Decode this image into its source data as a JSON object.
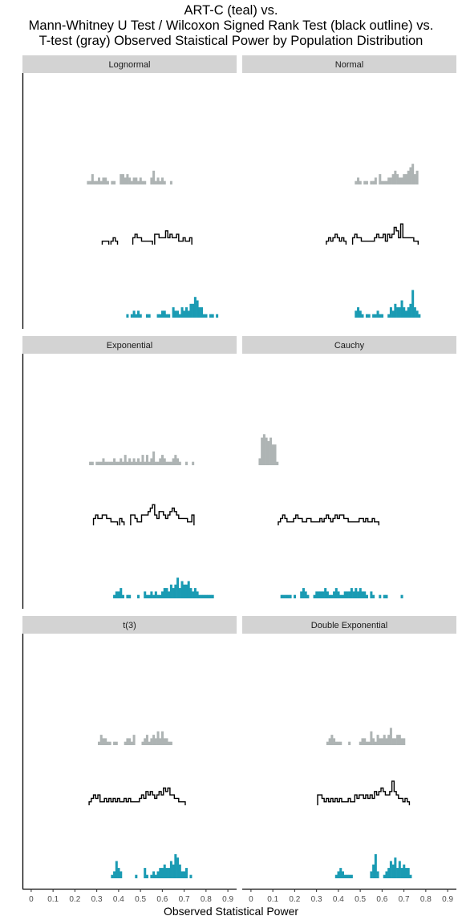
{
  "title_lines": [
    "ART-C (teal) vs.",
    "Mann-Whitney U Test / Wilcoxon Signed Rank Test (black outline) vs.",
    "T-test (gray) Observed Staistical Power by Population Distribution"
  ],
  "colors": {
    "artc": "#1a9bb3",
    "ttest": "#aeb4b4",
    "mwu": "#000000",
    "strip": "#d3d3d3"
  },
  "chart_data": {
    "type": "histogram",
    "title": "ART-C (teal) vs. Mann-Whitney U Test / Wilcoxon Signed Rank Test (black outline) vs. T-test (gray) Observed Staistical Power by Population Distribution",
    "xlabel": "Observed Statistical Power",
    "ylabel": "",
    "xlim": [
      -0.04,
      0.94
    ],
    "xticks": [
      "0",
      "0.1",
      "0.2",
      "0.3",
      "0.4",
      "0.5",
      "0.6",
      "0.7",
      "0.8",
      "0.9"
    ],
    "bin_width": 0.01,
    "grid": false,
    "series_styles": {
      "artc": "teal filled",
      "mwu": "black outline",
      "ttest": "gray filled"
    },
    "panels": [
      {
        "label": "Lognormal",
        "ttest": {
          "0.26": 1,
          "0.27": 1,
          "0.28": 3,
          "0.29": 1,
          "0.3": 1,
          "0.31": 2,
          "0.32": 1,
          "0.33": 2,
          "0.34": 2,
          "0.35": 1,
          "0.37": 1,
          "0.38": 1,
          "0.41": 3,
          "0.42": 3,
          "0.43": 2,
          "0.44": 3,
          "0.45": 2,
          "0.46": 1,
          "0.47": 2,
          "0.48": 2,
          "0.49": 1,
          "0.5": 2,
          "0.51": 1,
          "0.52": 1,
          "0.55": 2,
          "0.56": 4,
          "0.57": 1,
          "0.58": 2,
          "0.59": 1,
          "0.6": 2,
          "0.61": 1,
          "0.64": 1
        },
        "mwu": {
          "0.33": 1,
          "0.34": 1,
          "0.35": 1,
          "0.37": 1,
          "0.38": 2,
          "0.39": 1,
          "0.47": 2,
          "0.48": 3,
          "0.49": 2,
          "0.5": 2,
          "0.51": 1,
          "0.52": 1,
          "0.53": 1,
          "0.54": 1,
          "0.55": 1,
          "0.57": 3,
          "0.58": 3,
          "0.59": 2,
          "0.6": 2,
          "0.61": 2,
          "0.62": 4,
          "0.63": 2,
          "0.64": 3,
          "0.65": 2,
          "0.66": 2,
          "0.67": 3,
          "0.68": 1,
          "0.69": 1,
          "0.7": 2,
          "0.71": 1,
          "0.72": 1,
          "0.73": 2
        },
        "artc": {
          "0.44": 1,
          "0.46": 1,
          "0.47": 2,
          "0.48": 1,
          "0.49": 2,
          "0.5": 1,
          "0.53": 1,
          "0.54": 1,
          "0.58": 1,
          "0.59": 1,
          "0.6": 2,
          "0.61": 2,
          "0.62": 1,
          "0.63": 1,
          "0.65": 3,
          "0.66": 2,
          "0.67": 2,
          "0.68": 1,
          "0.69": 3,
          "0.7": 2,
          "0.71": 3,
          "0.72": 2,
          "0.73": 4,
          "0.74": 4,
          "0.75": 6,
          "0.76": 5,
          "0.77": 3,
          "0.78": 3,
          "0.79": 1,
          "0.8": 1,
          "0.82": 1,
          "0.83": 1,
          "0.85": 1
        }
      },
      {
        "label": "Normal",
        "ttest": {
          "0.48": 1,
          "0.49": 2,
          "0.5": 1,
          "0.52": 1,
          "0.53": 1,
          "0.55": 1,
          "0.56": 1,
          "0.57": 2,
          "0.59": 3,
          "0.6": 1,
          "0.61": 1,
          "0.62": 1,
          "0.63": 2,
          "0.64": 2,
          "0.65": 3,
          "0.66": 4,
          "0.67": 3,
          "0.68": 2,
          "0.69": 2,
          "0.7": 3,
          "0.71": 3,
          "0.72": 4,
          "0.73": 5,
          "0.74": 6,
          "0.75": 3,
          "0.76": 4
        },
        "mwu": {
          "0.35": 1,
          "0.36": 2,
          "0.37": 1,
          "0.38": 2,
          "0.39": 3,
          "0.4": 2,
          "0.41": 1,
          "0.42": 2,
          "0.43": 1,
          "0.47": 2,
          "0.48": 3,
          "0.49": 2,
          "0.5": 2,
          "0.51": 1,
          "0.52": 1,
          "0.53": 1,
          "0.54": 1,
          "0.55": 1,
          "0.56": 1,
          "0.57": 2,
          "0.58": 3,
          "0.59": 2,
          "0.6": 2,
          "0.61": 3,
          "0.62": 1,
          "0.63": 3,
          "0.64": 2,
          "0.65": 3,
          "0.66": 5,
          "0.67": 4,
          "0.68": 2,
          "0.69": 6,
          "0.7": 2,
          "0.71": 2,
          "0.72": 2,
          "0.73": 2,
          "0.74": 2,
          "0.75": 1,
          "0.76": 1
        },
        "artc": {
          "0.48": 2,
          "0.49": 3,
          "0.5": 2,
          "0.51": 1,
          "0.53": 1,
          "0.54": 1,
          "0.56": 1,
          "0.57": 1,
          "0.58": 2,
          "0.59": 1,
          "0.6": 1,
          "0.63": 1,
          "0.64": 3,
          "0.65": 2,
          "0.66": 4,
          "0.67": 3,
          "0.68": 3,
          "0.69": 5,
          "0.7": 3,
          "0.71": 2,
          "0.72": 3,
          "0.73": 4,
          "0.74": 8,
          "0.75": 3,
          "0.76": 2,
          "0.77": 1
        }
      },
      {
        "label": "Exponential",
        "ttest": {
          "0.27": 1,
          "0.28": 1,
          "0.3": 1,
          "0.31": 1,
          "0.32": 1,
          "0.33": 2,
          "0.34": 1,
          "0.35": 1,
          "0.36": 1,
          "0.37": 1,
          "0.38": 2,
          "0.39": 1,
          "0.4": 1,
          "0.41": 2,
          "0.42": 1,
          "0.43": 3,
          "0.44": 1,
          "0.45": 2,
          "0.46": 1,
          "0.47": 2,
          "0.48": 1,
          "0.49": 2,
          "0.5": 1,
          "0.51": 3,
          "0.52": 1,
          "0.53": 3,
          "0.54": 1,
          "0.55": 2,
          "0.56": 4,
          "0.57": 1,
          "0.58": 1,
          "0.59": 2,
          "0.6": 3,
          "0.61": 2,
          "0.62": 1,
          "0.63": 1,
          "0.64": 1,
          "0.65": 2,
          "0.66": 3,
          "0.67": 2,
          "0.68": 1,
          "0.71": 1,
          "0.74": 1
        },
        "mwu": {
          "0.29": 2,
          "0.3": 3,
          "0.31": 2,
          "0.32": 2,
          "0.33": 3,
          "0.34": 3,
          "0.35": 2,
          "0.36": 2,
          "0.37": 1,
          "0.38": 1,
          "0.39": 1,
          "0.41": 2,
          "0.42": 1,
          "0.46": 3,
          "0.47": 3,
          "0.48": 2,
          "0.49": 1,
          "0.5": 1,
          "0.51": 3,
          "0.52": 3,
          "0.53": 3,
          "0.54": 4,
          "0.55": 5,
          "0.56": 6,
          "0.57": 3,
          "0.58": 2,
          "0.59": 4,
          "0.6": 4,
          "0.61": 3,
          "0.62": 2,
          "0.63": 3,
          "0.64": 4,
          "0.65": 5,
          "0.66": 4,
          "0.67": 3,
          "0.68": 2,
          "0.69": 2,
          "0.7": 2,
          "0.71": 2,
          "0.72": 1,
          "0.73": 1,
          "0.74": 3
        },
        "artc": {
          "0.38": 1,
          "0.39": 2,
          "0.4": 2,
          "0.41": 3,
          "0.42": 1,
          "0.44": 1,
          "0.45": 1,
          "0.49": 1,
          "0.52": 2,
          "0.53": 1,
          "0.54": 1,
          "0.55": 2,
          "0.56": 1,
          "0.57": 2,
          "0.58": 1,
          "0.59": 1,
          "0.6": 2,
          "0.61": 3,
          "0.62": 3,
          "0.63": 2,
          "0.64": 4,
          "0.65": 3,
          "0.66": 4,
          "0.67": 6,
          "0.68": 3,
          "0.69": 5,
          "0.7": 4,
          "0.71": 4,
          "0.72": 5,
          "0.73": 3,
          "0.74": 2,
          "0.75": 3,
          "0.76": 2,
          "0.77": 1,
          "0.78": 1,
          "0.79": 1,
          "0.8": 1,
          "0.81": 1,
          "0.82": 1,
          "0.83": 1
        }
      },
      {
        "label": "Cauchy",
        "ttest": {
          "0.04": 2,
          "0.05": 8,
          "0.06": 9,
          "0.07": 8,
          "0.08": 7,
          "0.09": 8,
          "0.1": 6,
          "0.11": 6,
          "0.12": 1
        },
        "mwu": {
          "0.13": 1,
          "0.14": 2,
          "0.15": 3,
          "0.16": 2,
          "0.17": 1,
          "0.18": 1,
          "0.19": 1,
          "0.2": 2,
          "0.21": 3,
          "0.22": 2,
          "0.23": 2,
          "0.24": 1,
          "0.25": 1,
          "0.26": 2,
          "0.27": 2,
          "0.28": 1,
          "0.29": 1,
          "0.3": 1,
          "0.31": 1,
          "0.32": 2,
          "0.33": 1,
          "0.34": 2,
          "0.35": 3,
          "0.36": 2,
          "0.37": 1,
          "0.38": 2,
          "0.39": 3,
          "0.4": 2,
          "0.41": 3,
          "0.42": 3,
          "0.43": 2,
          "0.44": 2,
          "0.45": 1,
          "0.46": 1,
          "0.47": 1,
          "0.48": 1,
          "0.49": 1,
          "0.5": 2,
          "0.51": 2,
          "0.52": 1,
          "0.53": 2,
          "0.54": 1,
          "0.55": 1,
          "0.56": 2,
          "0.57": 1,
          "0.58": 1
        },
        "artc": {
          "0.14": 1,
          "0.15": 1,
          "0.16": 1,
          "0.17": 1,
          "0.18": 1,
          "0.2": 1,
          "0.23": 2,
          "0.24": 3,
          "0.25": 2,
          "0.26": 1,
          "0.29": 1,
          "0.3": 2,
          "0.31": 2,
          "0.32": 2,
          "0.33": 2,
          "0.34": 3,
          "0.35": 2,
          "0.36": 1,
          "0.37": 1,
          "0.38": 2,
          "0.39": 3,
          "0.4": 2,
          "0.41": 1,
          "0.42": 1,
          "0.43": 2,
          "0.44": 2,
          "0.45": 2,
          "0.46": 3,
          "0.47": 2,
          "0.48": 3,
          "0.49": 2,
          "0.5": 3,
          "0.51": 2,
          "0.52": 2,
          "0.53": 1,
          "0.55": 2,
          "0.56": 1,
          "0.59": 1,
          "0.61": 1,
          "0.62": 1,
          "0.69": 1
        }
      },
      {
        "label": "t(3)",
        "ttest": {
          "0.31": 1,
          "0.32": 3,
          "0.33": 2,
          "0.34": 2,
          "0.35": 1,
          "0.36": 1,
          "0.38": 1,
          "0.39": 1,
          "0.43": 1,
          "0.44": 2,
          "0.45": 2,
          "0.46": 1,
          "0.47": 3,
          "0.51": 1,
          "0.52": 2,
          "0.53": 3,
          "0.54": 1,
          "0.55": 2,
          "0.56": 3,
          "0.57": 2,
          "0.58": 4,
          "0.59": 2,
          "0.6": 4,
          "0.61": 2,
          "0.62": 2,
          "0.63": 1,
          "0.64": 1
        },
        "mwu": {
          "0.27": 1,
          "0.28": 2,
          "0.29": 3,
          "0.3": 2,
          "0.31": 3,
          "0.32": 1,
          "0.33": 1,
          "0.34": 2,
          "0.35": 1,
          "0.36": 2,
          "0.37": 1,
          "0.38": 2,
          "0.39": 1,
          "0.4": 2,
          "0.41": 1,
          "0.42": 1,
          "0.43": 2,
          "0.44": 1,
          "0.45": 2,
          "0.46": 1,
          "0.47": 1,
          "0.48": 1,
          "0.49": 1,
          "0.5": 2,
          "0.51": 3,
          "0.52": 2,
          "0.53": 4,
          "0.54": 3,
          "0.55": 4,
          "0.56": 3,
          "0.57": 2,
          "0.58": 3,
          "0.59": 4,
          "0.6": 3,
          "0.61": 5,
          "0.62": 4,
          "0.63": 5,
          "0.64": 3,
          "0.65": 3,
          "0.66": 2,
          "0.67": 2,
          "0.68": 1,
          "0.69": 1,
          "0.7": 1
        },
        "artc": {
          "0.37": 1,
          "0.38": 2,
          "0.39": 5,
          "0.4": 3,
          "0.41": 2,
          "0.48": 1,
          "0.52": 3,
          "0.53": 1,
          "0.55": 1,
          "0.56": 2,
          "0.57": 1,
          "0.58": 2,
          "0.59": 3,
          "0.6": 3,
          "0.61": 4,
          "0.62": 3,
          "0.63": 3,
          "0.64": 5,
          "0.65": 4,
          "0.66": 7,
          "0.67": 6,
          "0.68": 4,
          "0.69": 2,
          "0.7": 2,
          "0.71": 3,
          "0.73": 1
        }
      },
      {
        "label": "Double Exponential",
        "ttest": {
          "0.35": 1,
          "0.36": 2,
          "0.37": 3,
          "0.38": 2,
          "0.39": 1,
          "0.4": 1,
          "0.41": 1,
          "0.45": 1,
          "0.5": 1,
          "0.51": 2,
          "0.52": 2,
          "0.53": 1,
          "0.54": 1,
          "0.55": 4,
          "0.56": 2,
          "0.57": 1,
          "0.58": 3,
          "0.59": 2,
          "0.6": 2,
          "0.61": 3,
          "0.62": 2,
          "0.63": 3,
          "0.64": 5,
          "0.65": 2,
          "0.66": 2,
          "0.67": 3,
          "0.68": 3,
          "0.69": 2,
          "0.7": 2
        },
        "mwu": {
          "0.31": 3,
          "0.32": 3,
          "0.33": 2,
          "0.34": 1,
          "0.35": 2,
          "0.36": 1,
          "0.37": 2,
          "0.38": 1,
          "0.39": 2,
          "0.4": 1,
          "0.41": 2,
          "0.42": 1,
          "0.43": 1,
          "0.44": 1,
          "0.45": 2,
          "0.46": 1,
          "0.47": 1,
          "0.48": 3,
          "0.49": 2,
          "0.5": 3,
          "0.51": 3,
          "0.52": 2,
          "0.53": 3,
          "0.54": 2,
          "0.55": 3,
          "0.56": 2,
          "0.57": 4,
          "0.58": 3,
          "0.59": 4,
          "0.6": 5,
          "0.61": 4,
          "0.62": 3,
          "0.63": 3,
          "0.64": 4,
          "0.65": 7,
          "0.66": 4,
          "0.67": 3,
          "0.68": 2,
          "0.69": 2,
          "0.7": 1,
          "0.71": 2,
          "0.72": 1
        },
        "artc": {
          "0.39": 1,
          "0.4": 2,
          "0.41": 3,
          "0.42": 2,
          "0.43": 1,
          "0.44": 1,
          "0.45": 1,
          "0.46": 1,
          "0.55": 2,
          "0.56": 4,
          "0.57": 7,
          "0.58": 2,
          "0.61": 1,
          "0.62": 2,
          "0.63": 3,
          "0.64": 5,
          "0.65": 4,
          "0.66": 6,
          "0.67": 3,
          "0.68": 5,
          "0.69": 3,
          "0.7": 4,
          "0.71": 3,
          "0.72": 3,
          "0.73": 1
        }
      }
    ]
  }
}
